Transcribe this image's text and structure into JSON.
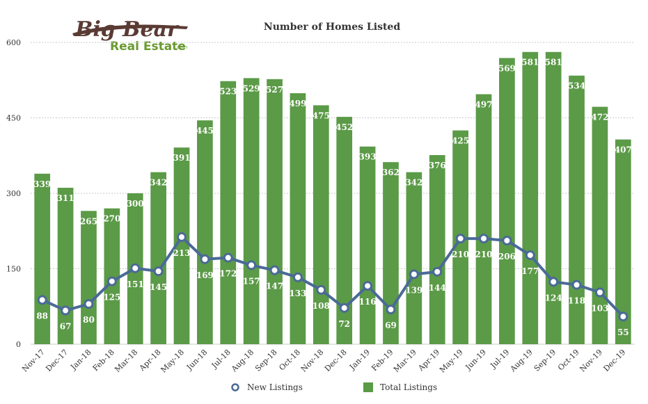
{
  "logo": {
    "line1": "Big Bear",
    "line2": "Real Estate",
    "suffix": ".com"
  },
  "chart_data": {
    "type": "bar",
    "title": "Number of Homes Listed",
    "categories": [
      "Nov-17",
      "Dec-17",
      "Jan-18",
      "Feb-18",
      "Mar-18",
      "Apr-18",
      "May-18",
      "Jun-18",
      "Jul-18",
      "Aug-18",
      "Sep-18",
      "Oct-18",
      "Nov-18",
      "Dec-18",
      "Jan-19",
      "Feb-19",
      "Mar-19",
      "Apr-19",
      "May-19",
      "Jun-19",
      "Jul-19",
      "Aug-19",
      "Sep-19",
      "Oct-19",
      "Nov-19",
      "Dec-19"
    ],
    "series": [
      {
        "name": "Total Listings",
        "type": "bar",
        "color": "#5b9a47",
        "values": [
          339,
          311,
          265,
          270,
          300,
          342,
          391,
          445,
          523,
          529,
          527,
          499,
          475,
          452,
          393,
          362,
          342,
          376,
          425,
          497,
          569,
          581,
          581,
          534,
          472,
          407
        ]
      },
      {
        "name": "New Listings",
        "type": "line",
        "color": "#4a6a96",
        "values": [
          88,
          67,
          80,
          125,
          151,
          145,
          213,
          169,
          172,
          157,
          147,
          133,
          108,
          72,
          116,
          69,
          139,
          144,
          210,
          210,
          206,
          177,
          124,
          118,
          103,
          55
        ]
      }
    ],
    "yticks": [
      0,
      150,
      300,
      450,
      600
    ],
    "ylim": [
      0,
      600
    ],
    "grid": true,
    "legend_position": "bottom-center"
  }
}
